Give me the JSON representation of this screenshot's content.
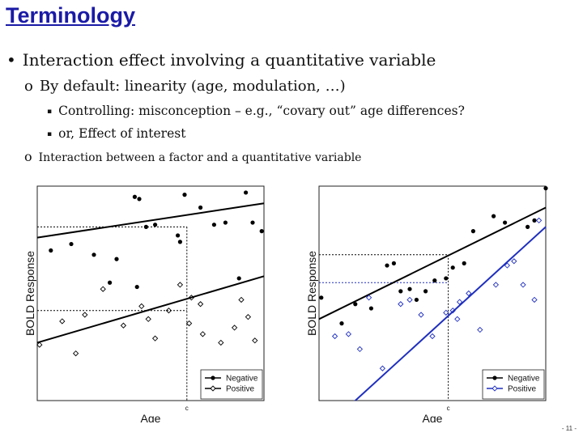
{
  "slide": {
    "title": "Terminology",
    "page_number": "- 11 -"
  },
  "bullets": {
    "l1": {
      "marker": "•",
      "text": "Interaction effect involving a quantitative variable"
    },
    "l2": {
      "marker": "o",
      "text": "By default: linearity (age, modulation, …)"
    },
    "l3a": {
      "marker": "▪",
      "text": "Controlling: misconception – e.g., “covary out” age differences?"
    },
    "l3b": {
      "marker": "▪",
      "text": "or, Effect of interest"
    },
    "l2b": {
      "marker": "o",
      "text": "Interaction between a factor and a quantitative variable"
    }
  },
  "chart_data": [
    {
      "type": "scatter",
      "title": "",
      "xlabel": "Age",
      "ylabel": "BOLD Response",
      "x_ref_label": "c",
      "xlim": [
        0,
        1
      ],
      "ylim": [
        0,
        1
      ],
      "legend": {
        "placement": "bottom-right"
      },
      "colors": {
        "negative": "#000000",
        "positive": "#000000"
      },
      "series": [
        {
          "name": "Negative",
          "marker": "filled-circle",
          "points": [
            [
              0.06,
              0.7
            ],
            [
              0.15,
              0.73
            ],
            [
              0.25,
              0.68
            ],
            [
              0.35,
              0.66
            ],
            [
              0.43,
              0.95
            ],
            [
              0.45,
              0.94
            ],
            [
              0.48,
              0.81
            ],
            [
              0.52,
              0.82
            ],
            [
              0.62,
              0.77
            ],
            [
              0.63,
              0.74
            ],
            [
              0.65,
              0.96
            ],
            [
              0.72,
              0.9
            ],
            [
              0.78,
              0.82
            ],
            [
              0.83,
              0.83
            ],
            [
              0.92,
              0.97
            ],
            [
              0.95,
              0.83
            ],
            [
              0.99,
              0.79
            ],
            [
              0.32,
              0.55
            ],
            [
              0.44,
              0.53
            ],
            [
              0.89,
              0.57
            ]
          ],
          "line": [
            [
              0,
              0.76
            ],
            [
              1,
              0.92
            ]
          ],
          "ref_point": [
            0.66,
            0.81
          ]
        },
        {
          "name": "Positive",
          "marker": "open-diamond",
          "points": [
            [
              0.01,
              0.26
            ],
            [
              0.11,
              0.37
            ],
            [
              0.17,
              0.22
            ],
            [
              0.21,
              0.4
            ],
            [
              0.29,
              0.52
            ],
            [
              0.38,
              0.35
            ],
            [
              0.46,
              0.44
            ],
            [
              0.49,
              0.38
            ],
            [
              0.52,
              0.29
            ],
            [
              0.58,
              0.42
            ],
            [
              0.63,
              0.54
            ],
            [
              0.67,
              0.36
            ],
            [
              0.72,
              0.45
            ],
            [
              0.73,
              0.31
            ],
            [
              0.81,
              0.27
            ],
            [
              0.87,
              0.34
            ],
            [
              0.9,
              0.47
            ],
            [
              0.93,
              0.39
            ],
            [
              0.96,
              0.28
            ],
            [
              0.68,
              0.48
            ]
          ],
          "line": [
            [
              0,
              0.27
            ],
            [
              1,
              0.58
            ]
          ],
          "ref_point": [
            0.66,
            0.42
          ]
        }
      ]
    },
    {
      "type": "scatter",
      "title": "",
      "xlabel": "Age",
      "ylabel": "BOLD Response",
      "x_ref_label": "c",
      "xlim": [
        0,
        1
      ],
      "ylim": [
        0,
        1
      ],
      "legend": {
        "placement": "bottom-right"
      },
      "colors": {
        "negative": "#000000",
        "positive": "#1f2fbf"
      },
      "series": [
        {
          "name": "Negative",
          "marker": "filled-circle",
          "points": [
            [
              0.01,
              0.48
            ],
            [
              0.1,
              0.36
            ],
            [
              0.16,
              0.45
            ],
            [
              0.23,
              0.43
            ],
            [
              0.3,
              0.63
            ],
            [
              0.33,
              0.64
            ],
            [
              0.36,
              0.51
            ],
            [
              0.4,
              0.52
            ],
            [
              0.43,
              0.47
            ],
            [
              0.47,
              0.51
            ],
            [
              0.51,
              0.56
            ],
            [
              0.56,
              0.57
            ],
            [
              0.59,
              0.62
            ],
            [
              0.64,
              0.64
            ],
            [
              0.68,
              0.79
            ],
            [
              0.77,
              0.86
            ],
            [
              0.82,
              0.83
            ],
            [
              0.95,
              0.84
            ],
            [
              0.92,
              0.81
            ],
            [
              1.0,
              0.99
            ]
          ],
          "line": [
            [
              0,
              0.38
            ],
            [
              1,
              0.9
            ]
          ],
          "ref_point": [
            0.57,
            0.68
          ]
        },
        {
          "name": "Positive",
          "marker": "open-diamond",
          "points": [
            [
              0.07,
              0.3
            ],
            [
              0.13,
              0.31
            ],
            [
              0.18,
              0.24
            ],
            [
              0.22,
              0.48
            ],
            [
              0.28,
              0.15
            ],
            [
              0.36,
              0.45
            ],
            [
              0.4,
              0.47
            ],
            [
              0.45,
              0.4
            ],
            [
              0.5,
              0.3
            ],
            [
              0.56,
              0.41
            ],
            [
              0.59,
              0.42
            ],
            [
              0.61,
              0.38
            ],
            [
              0.62,
              0.46
            ],
            [
              0.66,
              0.5
            ],
            [
              0.71,
              0.33
            ],
            [
              0.78,
              0.54
            ],
            [
              0.83,
              0.63
            ],
            [
              0.86,
              0.65
            ],
            [
              0.9,
              0.54
            ],
            [
              0.95,
              0.47
            ],
            [
              0.97,
              0.84
            ]
          ],
          "line": [
            [
              0.16,
              0.0
            ],
            [
              1,
              0.81
            ]
          ],
          "ref_point": [
            0.57,
            0.55
          ]
        }
      ]
    }
  ]
}
